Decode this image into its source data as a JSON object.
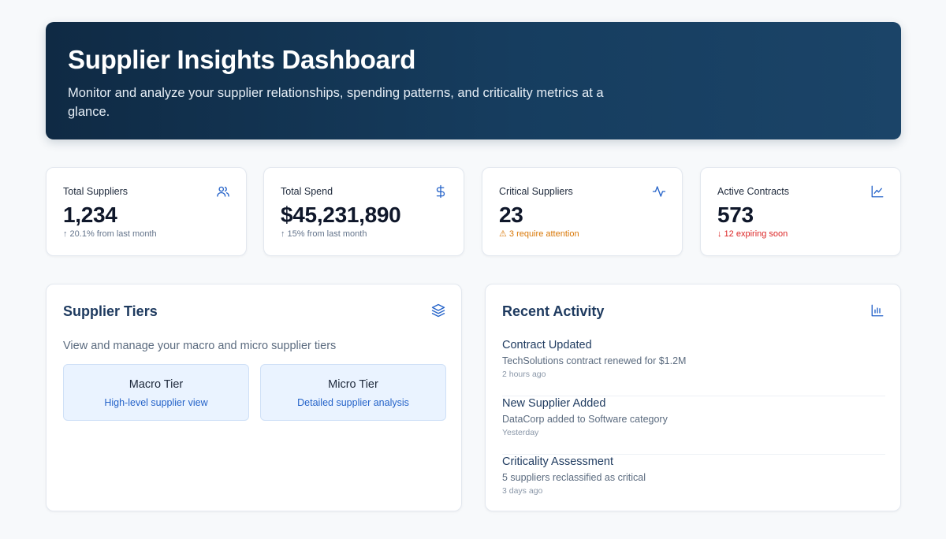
{
  "hero": {
    "title": "Supplier Insights Dashboard",
    "subtitle": "Monitor and analyze your supplier relationships, spending patterns, and criticality metrics at a glance."
  },
  "stats": [
    {
      "label": "Total Suppliers",
      "value": "1,234",
      "note": "↑ 20.1% from last month",
      "icon": "users-icon"
    },
    {
      "label": "Total Spend",
      "value": "$45,231,890",
      "note": "↑ 15% from last month",
      "icon": "dollar-icon"
    },
    {
      "label": "Critical Suppliers",
      "value": "23",
      "note": "⚠ 3 require attention",
      "icon": "activity-icon"
    },
    {
      "label": "Active Contracts",
      "value": "573",
      "note": "↓ 12 expiring soon",
      "icon": "line-chart-icon"
    }
  ],
  "tiers": {
    "title": "Supplier Tiers",
    "description": "View and manage your macro and micro supplier tiers",
    "icon": "layers-icon",
    "items": [
      {
        "title": "Macro Tier",
        "subtitle": "High-level supplier view"
      },
      {
        "title": "Micro Tier",
        "subtitle": "Detailed supplier analysis"
      }
    ]
  },
  "activity": {
    "title": "Recent Activity",
    "icon": "bar-chart-icon",
    "items": [
      {
        "title": "Contract Updated",
        "description": "TechSolutions contract renewed for $1.2M",
        "time": "2 hours ago"
      },
      {
        "title": "New Supplier Added",
        "description": "DataCorp added to Software category",
        "time": "Yesterday"
      },
      {
        "title": "Criticality Assessment",
        "description": "5 suppliers reclassified as critical",
        "time": "3 days ago"
      }
    ]
  },
  "colors": {
    "accent": "#2563c9",
    "hero_dark": "#0f2a44",
    "warning": "#d97706",
    "danger": "#dc2626"
  }
}
